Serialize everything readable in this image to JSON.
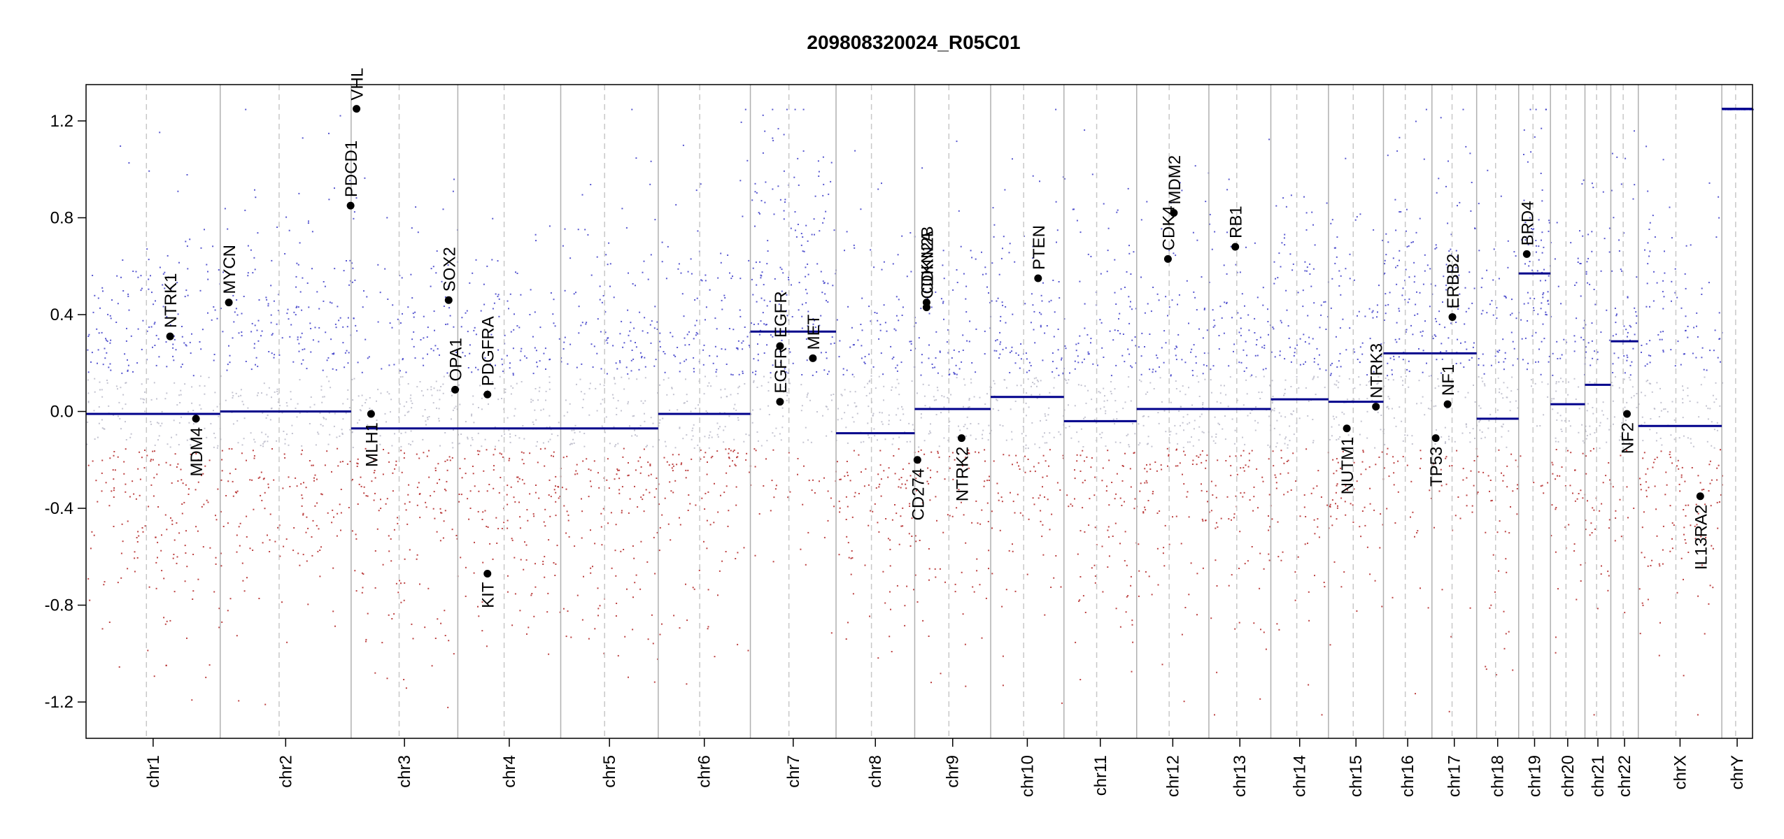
{
  "chart_data": {
    "type": "scatter",
    "title": "209808320024_R05C01",
    "xlabel": "",
    "ylabel": "",
    "ylim": [
      -1.35,
      1.35
    ],
    "yticks": [
      -1.2,
      -0.8,
      -0.4,
      0.0,
      0.4,
      0.8,
      1.2
    ],
    "ytick_labels": [
      "-1.2",
      "-0.8",
      "-0.4",
      "0.0",
      "0.4",
      "0.8",
      "1.2"
    ],
    "chromosomes": [
      {
        "name": "chr1",
        "length": 249
      },
      {
        "name": "chr2",
        "length": 243
      },
      {
        "name": "chr3",
        "length": 198
      },
      {
        "name": "chr4",
        "length": 191
      },
      {
        "name": "chr5",
        "length": 181
      },
      {
        "name": "chr6",
        "length": 171
      },
      {
        "name": "chr7",
        "length": 159
      },
      {
        "name": "chr8",
        "length": 146
      },
      {
        "name": "chr9",
        "length": 141
      },
      {
        "name": "chr10",
        "length": 136
      },
      {
        "name": "chr11",
        "length": 135
      },
      {
        "name": "chr12",
        "length": 134
      },
      {
        "name": "chr13",
        "length": 115
      },
      {
        "name": "chr14",
        "length": 107
      },
      {
        "name": "chr15",
        "length": 102
      },
      {
        "name": "chr16",
        "length": 90
      },
      {
        "name": "chr17",
        "length": 83
      },
      {
        "name": "chr18",
        "length": 78
      },
      {
        "name": "chr19",
        "length": 59
      },
      {
        "name": "chr20",
        "length": 64
      },
      {
        "name": "chr21",
        "length": 48
      },
      {
        "name": "chr22",
        "length": 51
      },
      {
        "name": "chrX",
        "length": 155
      },
      {
        "name": "chrY",
        "length": 57
      }
    ],
    "segments": [
      {
        "chr": "chr1",
        "start": 0,
        "end": 249,
        "value": -0.01
      },
      {
        "chr": "chr2",
        "start": 0,
        "end": 243,
        "value": 0.0
      },
      {
        "chr": "chr3",
        "start": 0,
        "end": 198,
        "value": -0.07
      },
      {
        "chr": "chr4",
        "start": 0,
        "end": 191,
        "value": -0.07
      },
      {
        "chr": "chr5",
        "start": 0,
        "end": 181,
        "value": -0.07
      },
      {
        "chr": "chr6",
        "start": 0,
        "end": 171,
        "value": -0.01
      },
      {
        "chr": "chr7",
        "start": 0,
        "end": 159,
        "value": 0.33
      },
      {
        "chr": "chr8",
        "start": 0,
        "end": 146,
        "value": -0.09
      },
      {
        "chr": "chr9",
        "start": 0,
        "end": 141,
        "value": 0.01
      },
      {
        "chr": "chr10",
        "start": 0,
        "end": 136,
        "value": 0.06
      },
      {
        "chr": "chr11",
        "start": 0,
        "end": 135,
        "value": -0.04
      },
      {
        "chr": "chr12",
        "start": 0,
        "end": 134,
        "value": 0.01
      },
      {
        "chr": "chr13",
        "start": 0,
        "end": 115,
        "value": 0.01
      },
      {
        "chr": "chr14",
        "start": 0,
        "end": 107,
        "value": 0.05
      },
      {
        "chr": "chr15",
        "start": 0,
        "end": 102,
        "value": 0.04
      },
      {
        "chr": "chr16",
        "start": 0,
        "end": 90,
        "value": 0.24
      },
      {
        "chr": "chr17",
        "start": 0,
        "end": 83,
        "value": 0.24
      },
      {
        "chr": "chr18",
        "start": 0,
        "end": 78,
        "value": -0.03
      },
      {
        "chr": "chr19",
        "start": 0,
        "end": 59,
        "value": 0.57
      },
      {
        "chr": "chr20",
        "start": 0,
        "end": 64,
        "value": 0.03
      },
      {
        "chr": "chr21",
        "start": 0,
        "end": 48,
        "value": 0.11
      },
      {
        "chr": "chr22",
        "start": 0,
        "end": 51,
        "value": 0.29
      },
      {
        "chr": "chrX",
        "start": 0,
        "end": 155,
        "value": -0.06
      },
      {
        "chr": "chrY",
        "start": 0,
        "end": 57,
        "value": 1.25
      }
    ],
    "genes": [
      {
        "name": "NTRK1",
        "chr": "chr1",
        "pos": 156,
        "value": 0.31,
        "label_side": "above"
      },
      {
        "name": "MDM4",
        "chr": "chr1",
        "pos": 204,
        "value": -0.03,
        "label_side": "below"
      },
      {
        "name": "MYCN",
        "chr": "chr2",
        "pos": 16,
        "value": 0.45,
        "label_side": "above"
      },
      {
        "name": "PDCD1",
        "chr": "chr2",
        "pos": 242,
        "value": 0.85,
        "label_side": "above"
      },
      {
        "name": "VHL",
        "chr": "chr3",
        "pos": 10,
        "value": 1.25,
        "label_side": "above"
      },
      {
        "name": "MLH1",
        "chr": "chr3",
        "pos": 37,
        "value": -0.01,
        "label_side": "below"
      },
      {
        "name": "SOX2",
        "chr": "chr3",
        "pos": 181,
        "value": 0.46,
        "label_side": "above"
      },
      {
        "name": "OPA1",
        "chr": "chr3",
        "pos": 193,
        "value": 0.09,
        "label_side": "above"
      },
      {
        "name": "PDGFRA",
        "chr": "chr4",
        "pos": 55,
        "value": 0.07,
        "label_side": "above"
      },
      {
        "name": "KIT",
        "chr": "chr4",
        "pos": 55,
        "value": -0.67,
        "label_side": "below"
      },
      {
        "name": "EGFR",
        "chr": "chr7",
        "pos": 55,
        "value": 0.04,
        "label_side": "above"
      },
      {
        "name": "EGFR",
        "chr": "chr7",
        "pos": 55,
        "value": 0.27,
        "label_side": "above"
      },
      {
        "name": "MET",
        "chr": "chr7",
        "pos": 116,
        "value": 0.22,
        "label_side": "above"
      },
      {
        "name": "CD274",
        "chr": "chr9",
        "pos": 5,
        "value": -0.2,
        "label_side": "below"
      },
      {
        "name": "CDKN2A",
        "chr": "chr9",
        "pos": 22,
        "value": 0.43,
        "label_side": "above"
      },
      {
        "name": "CDKN2B",
        "chr": "chr9",
        "pos": 22,
        "value": 0.45,
        "label_side": "above"
      },
      {
        "name": "NTRK2",
        "chr": "chr9",
        "pos": 87,
        "value": -0.11,
        "label_side": "below"
      },
      {
        "name": "PTEN",
        "chr": "chr10",
        "pos": 88,
        "value": 0.55,
        "label_side": "above"
      },
      {
        "name": "CDK4",
        "chr": "chr12",
        "pos": 58,
        "value": 0.63,
        "label_side": "above"
      },
      {
        "name": "MDM2",
        "chr": "chr12",
        "pos": 69,
        "value": 0.82,
        "label_side": "above"
      },
      {
        "name": "RB1",
        "chr": "chr13",
        "pos": 49,
        "value": 0.68,
        "label_side": "above"
      },
      {
        "name": "NUTM1",
        "chr": "chr15",
        "pos": 34,
        "value": -0.07,
        "label_side": "below"
      },
      {
        "name": "NTRK3",
        "chr": "chr15",
        "pos": 88,
        "value": 0.02,
        "label_side": "above"
      },
      {
        "name": "TP53",
        "chr": "chr17",
        "pos": 7,
        "value": -0.11,
        "label_side": "below"
      },
      {
        "name": "NF1",
        "chr": "chr17",
        "pos": 29,
        "value": 0.03,
        "label_side": "above"
      },
      {
        "name": "ERBB2",
        "chr": "chr17",
        "pos": 38,
        "value": 0.39,
        "label_side": "above"
      },
      {
        "name": "BRD4",
        "chr": "chr19",
        "pos": 15,
        "value": 0.65,
        "label_side": "above"
      },
      {
        "name": "NF2",
        "chr": "chr22",
        "pos": 30,
        "value": -0.01,
        "label_side": "below"
      },
      {
        "name": "IL13RA2",
        "chr": "chrX",
        "pos": 115,
        "value": -0.35,
        "label_side": "below"
      }
    ],
    "colors": {
      "gain_points": "#3b3bc8",
      "loss_points": "#b22222",
      "neutral_points": "#b8b8c8",
      "segment_line": "#00008b",
      "chr_divider": "#b0b0b0",
      "centromere_line": "#c8c8c8",
      "gene_marker": "#000000",
      "axis": "#000000"
    },
    "scatter_description_points_per_chr": 260
  }
}
